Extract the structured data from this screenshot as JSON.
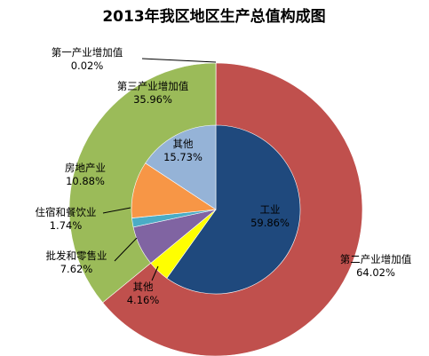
{
  "chart_data": {
    "type": "pie",
    "title": "2013年我区地区生产总值构成图",
    "outer_ring": [
      {
        "label": "第一产业增加值",
        "value": 0.02,
        "value_text": "0.02%",
        "color": "#4f81bd"
      },
      {
        "label": "第二产业增加值",
        "value": 64.02,
        "value_text": "64.02%",
        "color": "#c0504d"
      },
      {
        "label": "第三产业增加值",
        "value": 35.96,
        "value_text": "35.96%",
        "color": "#9bbb59"
      }
    ],
    "inner_pie": [
      {
        "label": "工业",
        "value": 59.86,
        "value_text": "59.86%",
        "color": "#1f497d"
      },
      {
        "label": "其他",
        "value": 4.16,
        "value_text": "4.16%",
        "color": "#ffff00"
      },
      {
        "label": "批发和零售业",
        "value": 7.62,
        "value_text": "7.62%",
        "color": "#8064a2"
      },
      {
        "label": "住宿和餐饮业",
        "value": 1.74,
        "value_text": "1.74%",
        "color": "#4bacc6"
      },
      {
        "label": "房地产业",
        "value": 10.88,
        "value_text": "10.88%",
        "color": "#f79646"
      },
      {
        "label": "其他",
        "value": 15.73,
        "value_text": "15.73%",
        "color": "#95b3d7"
      }
    ]
  }
}
